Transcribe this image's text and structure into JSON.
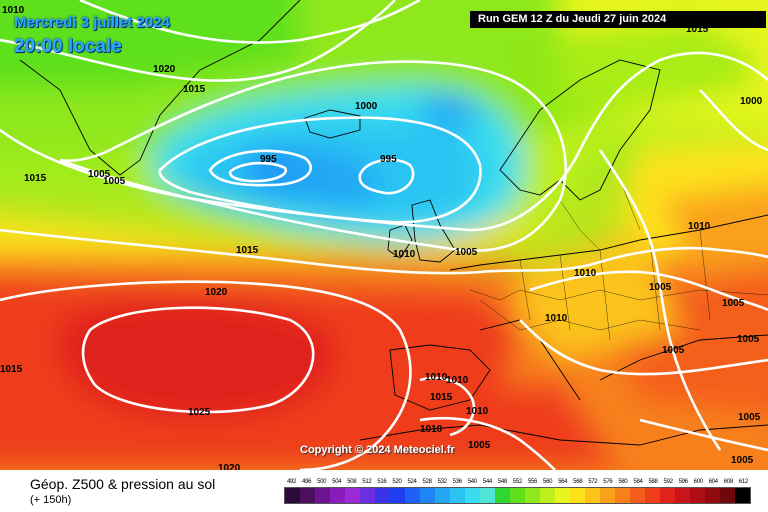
{
  "header": {
    "date": "Mercredi 3 juillet 2024",
    "time": "20:00 locale",
    "run": "Run GEM 12 Z du Jeudi 27 juin 2024"
  },
  "copyright": "Copyright © 2024 Meteociel.fr",
  "footer": {
    "title": "Géop. Z500 & pression au sol",
    "lead_time": "(+ 150h)"
  },
  "legend": {
    "labels": [
      "492",
      "496",
      "500",
      "504",
      "508",
      "512",
      "516",
      "520",
      "524",
      "528",
      "532",
      "536",
      "540",
      "544",
      "548",
      "552",
      "556",
      "560",
      "564",
      "568",
      "572",
      "576",
      "580",
      "584",
      "588",
      "592",
      "596",
      "600",
      "604",
      "608",
      "612"
    ],
    "colors": [
      "#2d0a3c",
      "#4b0f5f",
      "#6a1490",
      "#8a1bbd",
      "#9b2ad6",
      "#6b2fe0",
      "#3b33e6",
      "#1f3ef2",
      "#1d62f5",
      "#1f85f7",
      "#24a6f5",
      "#2bc4f2",
      "#39dcef",
      "#4fe6d8",
      "#2fd62f",
      "#5fe01a",
      "#8fe81a",
      "#bdef1a",
      "#e6f51a",
      "#fde21a",
      "#fcc31a",
      "#faa11a",
      "#f7801a",
      "#f45e1a",
      "#ef3d1a",
      "#e0221a",
      "#c9141a",
      "#ae0e14",
      "#900a10",
      "#6f070c",
      "#000000"
    ]
  },
  "map": {
    "isobar_labels": [
      {
        "text": "1010"
      },
      {
        "text": "1020"
      },
      {
        "text": "1015"
      },
      {
        "text": "1000"
      },
      {
        "text": "995"
      },
      {
        "text": "995"
      },
      {
        "text": "1015"
      },
      {
        "text": "1005"
      },
      {
        "text": "1005"
      },
      {
        "text": "1015"
      },
      {
        "text": "1010"
      },
      {
        "text": "1005"
      },
      {
        "text": "1020"
      },
      {
        "text": "1000"
      },
      {
        "text": "1010"
      },
      {
        "text": "1010"
      },
      {
        "text": "1005"
      },
      {
        "text": "1005"
      },
      {
        "text": "1005"
      },
      {
        "text": "1010"
      },
      {
        "text": "1015"
      },
      {
        "text": "1010"
      },
      {
        "text": "1010"
      },
      {
        "text": "1025"
      },
      {
        "text": "1015"
      },
      {
        "text": "1020"
      },
      {
        "text": "1010"
      },
      {
        "text": "1005"
      },
      {
        "text": "1010"
      },
      {
        "text": "1005"
      },
      {
        "text": "1005"
      },
      {
        "text": "1005"
      },
      {
        "text": "1015"
      }
    ]
  }
}
